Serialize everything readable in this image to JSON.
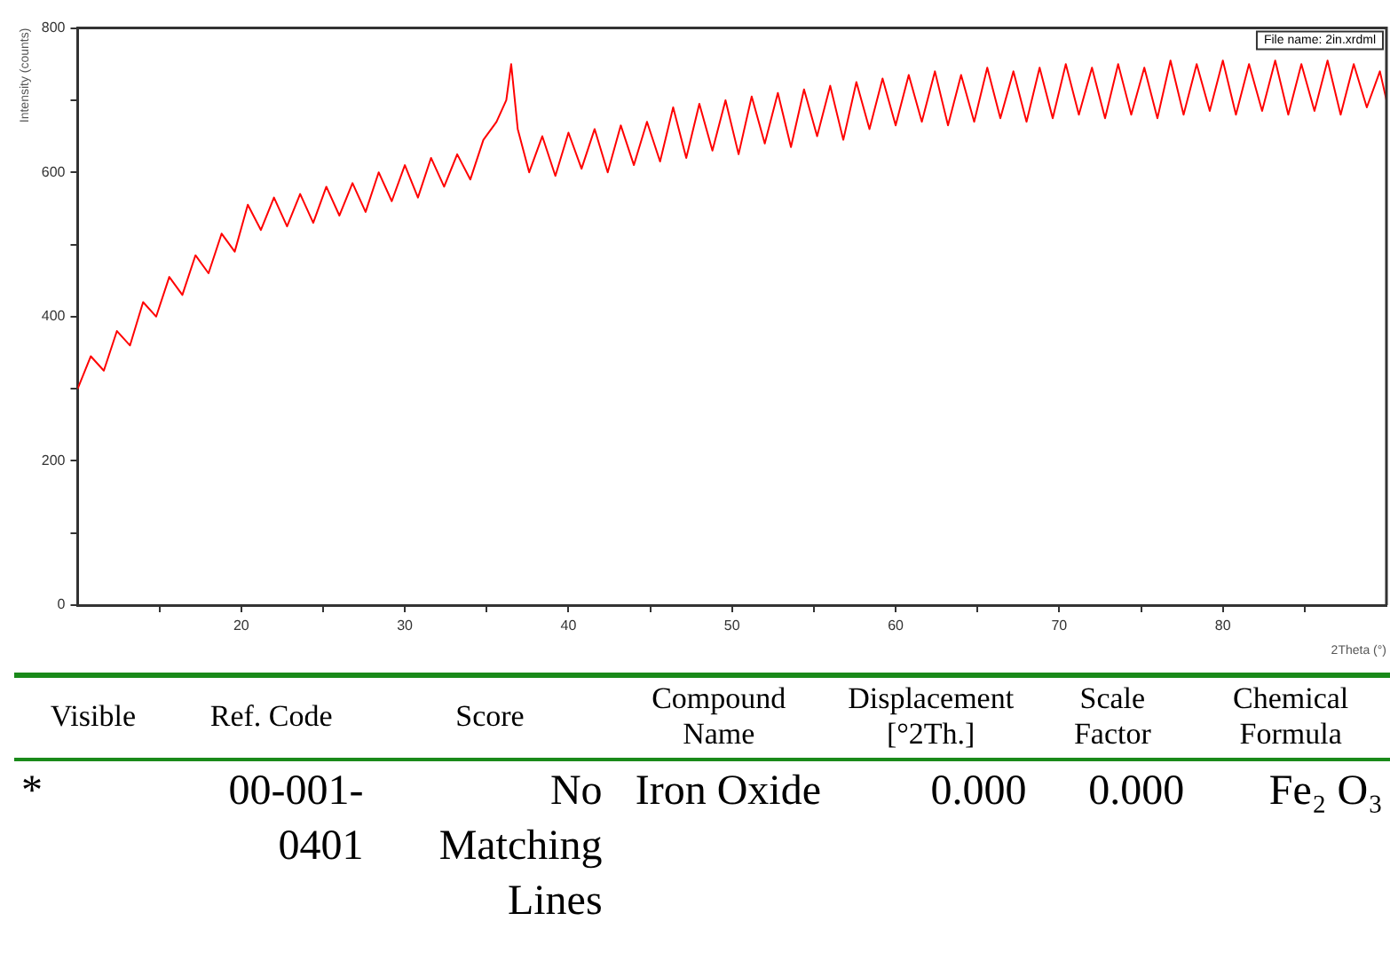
{
  "chart_data": [
    {
      "type": "line",
      "xlabel": "2Theta (°)",
      "ylabel": "Intensity (counts)",
      "annotations": [
        "File name: 2in.xrdml"
      ],
      "x": [
        10,
        10.8,
        11.6,
        12.4,
        13.2,
        14,
        14.8,
        15.6,
        16.4,
        17.2,
        18,
        18.8,
        19.6,
        20.4,
        21.2,
        22,
        22.8,
        23.6,
        24.4,
        25.2,
        26,
        26.8,
        27.6,
        28.4,
        29.2,
        30,
        30.8,
        31.6,
        32.4,
        33.2,
        34,
        34.8,
        35.6,
        36.2,
        36.5,
        36.9,
        37.6,
        38.4,
        39.2,
        40,
        40.8,
        41.6,
        42.4,
        43.2,
        44,
        44.8,
        45.6,
        46.4,
        47.2,
        48,
        48.8,
        49.6,
        50.4,
        51.2,
        52,
        52.8,
        53.6,
        54.4,
        55.2,
        56,
        56.8,
        57.6,
        58.4,
        59.2,
        60,
        60.8,
        61.6,
        62.4,
        63.2,
        64,
        64.8,
        65.6,
        66.4,
        67.2,
        68,
        68.8,
        69.6,
        70.4,
        71.2,
        72,
        72.8,
        73.6,
        74.4,
        75.2,
        76,
        76.8,
        77.6,
        78.4,
        79.2,
        80,
        80.8,
        81.6,
        82.4,
        83.2,
        84,
        84.8,
        85.6,
        86.4,
        87.2,
        88,
        88.8,
        89.6,
        90
      ],
      "series": [
        {
          "color": "#ff0000",
          "values": [
            300,
            345,
            325,
            380,
            360,
            420,
            400,
            455,
            430,
            485,
            460,
            515,
            490,
            555,
            520,
            565,
            525,
            570,
            530,
            580,
            540,
            585,
            545,
            600,
            560,
            610,
            565,
            620,
            580,
            625,
            590,
            645,
            670,
            700,
            750,
            660,
            600,
            650,
            595,
            655,
            605,
            660,
            600,
            665,
            610,
            670,
            615,
            690,
            620,
            695,
            630,
            700,
            625,
            705,
            640,
            710,
            635,
            715,
            650,
            720,
            645,
            725,
            660,
            730,
            665,
            735,
            670,
            740,
            665,
            735,
            670,
            745,
            675,
            740,
            670,
            745,
            675,
            750,
            680,
            745,
            675,
            750,
            680,
            745,
            675,
            755,
            680,
            750,
            685,
            755,
            680,
            750,
            685,
            755,
            680,
            750,
            685,
            755,
            680,
            750,
            690,
            740,
            700
          ]
        }
      ],
      "xlim": [
        10,
        90
      ],
      "xticks": [
        {
          "value": 15,
          "label": null
        },
        20,
        {
          "value": 25,
          "label": null
        },
        30,
        {
          "value": 35,
          "label": null
        },
        40,
        {
          "value": 45,
          "label": null
        },
        50,
        {
          "value": 55,
          "label": null
        },
        60,
        {
          "value": 65,
          "label": null
        },
        70,
        {
          "value": 75,
          "label": null
        },
        80,
        {
          "value": 85,
          "label": null
        }
      ],
      "ylim": [
        0,
        800
      ],
      "yticks": [
        0,
        {
          "value": 100,
          "label": null
        },
        200,
        {
          "value": 300,
          "label": null
        },
        400,
        {
          "value": 500,
          "label": null
        },
        600,
        {
          "value": 700,
          "label": null
        },
        800
      ],
      "grid": false,
      "legend": false,
      "marker": "none",
      "line_style": "solid"
    },
    {
      "type": "other",
      "annotations": [
        "Visible",
        "Ref. Code",
        "Score",
        "Compound Name",
        "Displacement [°2Th.]",
        "Scale Factor",
        "Chemical Formula",
        "*",
        "00-001-0401",
        "No Matching Lines",
        "Iron Oxide",
        "0.000",
        "0.000",
        "Fe₂ O₃"
      ]
    }
  ]
}
